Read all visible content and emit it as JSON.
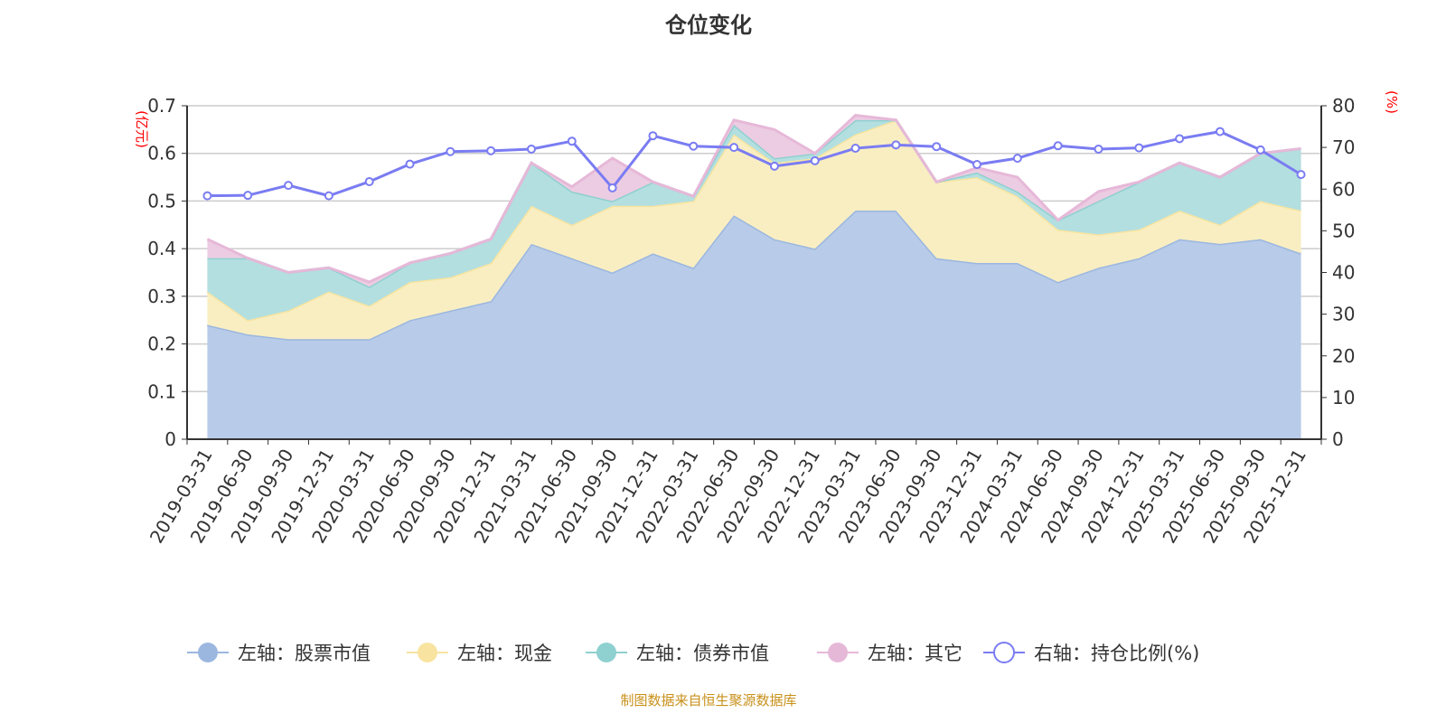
{
  "title": "仓位变化",
  "footer": "制图数据来自恒生聚源数据库",
  "chart_data": {
    "type": "area",
    "title": "仓位变化",
    "y_left_label": "(亿元)",
    "y_right_label": "(%)",
    "y_left_range": [
      0,
      0.7
    ],
    "y_left_ticks": [
      "0",
      "0.1",
      "0.2",
      "0.3",
      "0.4",
      "0.5",
      "0.6",
      "0.7"
    ],
    "y_right_range": [
      0,
      80
    ],
    "y_right_ticks": [
      "0",
      "10",
      "20",
      "30",
      "40",
      "50",
      "60",
      "70",
      "80"
    ],
    "grid": true,
    "legend_position": "bottom",
    "categories": [
      "2019-03-31",
      "2019-06-30",
      "2019-09-30",
      "2019-12-31",
      "2020-03-31",
      "2020-06-30",
      "2020-09-30",
      "2020-12-31",
      "2021-03-31",
      "2021-06-30",
      "2021-09-30",
      "2021-12-31",
      "2022-03-31",
      "2022-06-30",
      "2022-09-30",
      "2022-12-31",
      "2023-03-31",
      "2023-06-30",
      "2023-09-30",
      "2023-12-31",
      "2024-03-31",
      "2024-06-30",
      "2024-09-30",
      "2024-12-31",
      "2025-03-31",
      "2025-06-30",
      "2025-09-30",
      "2025-12-31"
    ],
    "series": [
      {
        "name": "左轴：股票市值",
        "axis": "left",
        "stack": true,
        "color": "#9bb7e0",
        "fill": "#b8cbe8",
        "values": [
          0.24,
          0.22,
          0.21,
          0.21,
          0.21,
          0.25,
          0.27,
          0.29,
          0.41,
          0.38,
          0.35,
          0.39,
          0.36,
          0.47,
          0.42,
          0.4,
          0.48,
          0.48,
          0.38,
          0.37,
          0.37,
          0.33,
          0.36,
          0.38,
          0.42,
          0.41,
          0.42,
          0.39
        ]
      },
      {
        "name": "左轴：现金",
        "axis": "left",
        "stack": true,
        "color": "#f8e4a0",
        "fill": "#f9eec2",
        "values": [
          0.07,
          0.03,
          0.06,
          0.1,
          0.07,
          0.08,
          0.07,
          0.08,
          0.08,
          0.07,
          0.14,
          0.1,
          0.14,
          0.17,
          0.16,
          0.19,
          0.16,
          0.19,
          0.16,
          0.18,
          0.14,
          0.11,
          0.07,
          0.06,
          0.06,
          0.04,
          0.08,
          0.09
        ]
      },
      {
        "name": "左轴：债券市值",
        "axis": "left",
        "stack": true,
        "color": "#8fd0d0",
        "fill": "#b3dfe0",
        "values": [
          0.07,
          0.13,
          0.08,
          0.05,
          0.04,
          0.04,
          0.05,
          0.05,
          0.09,
          0.07,
          0.01,
          0.05,
          0.01,
          0.02,
          0.01,
          0.01,
          0.03,
          0,
          0,
          0.01,
          0.01,
          0.02,
          0.07,
          0.1,
          0.1,
          0.1,
          0.1,
          0.13
        ]
      },
      {
        "name": "左轴：其它",
        "axis": "left",
        "stack": true,
        "color": "#e6b8d8",
        "fill": "#ecccE2",
        "values": [
          0.04,
          0,
          0,
          0,
          0.01,
          0,
          0,
          0,
          0,
          0.01,
          0.09,
          0,
          0,
          0.01,
          0.06,
          0,
          0.01,
          0,
          0,
          0.01,
          0.03,
          0,
          0.02,
          0,
          0,
          0,
          0,
          0
        ]
      },
      {
        "name": "右轴：持仓比例(%)",
        "axis": "right",
        "stack": false,
        "color": "#7a7cf2",
        "values": [
          58.4,
          58.5,
          60.9,
          58.4,
          61.8,
          66.0,
          69.0,
          69.2,
          69.6,
          71.5,
          60.3,
          72.8,
          70.3,
          70.0,
          65.5,
          66.8,
          69.8,
          70.6,
          70.2,
          65.9,
          67.4,
          70.4,
          69.6,
          69.9,
          72.1,
          73.8,
          69.4,
          63.5
        ]
      }
    ]
  }
}
